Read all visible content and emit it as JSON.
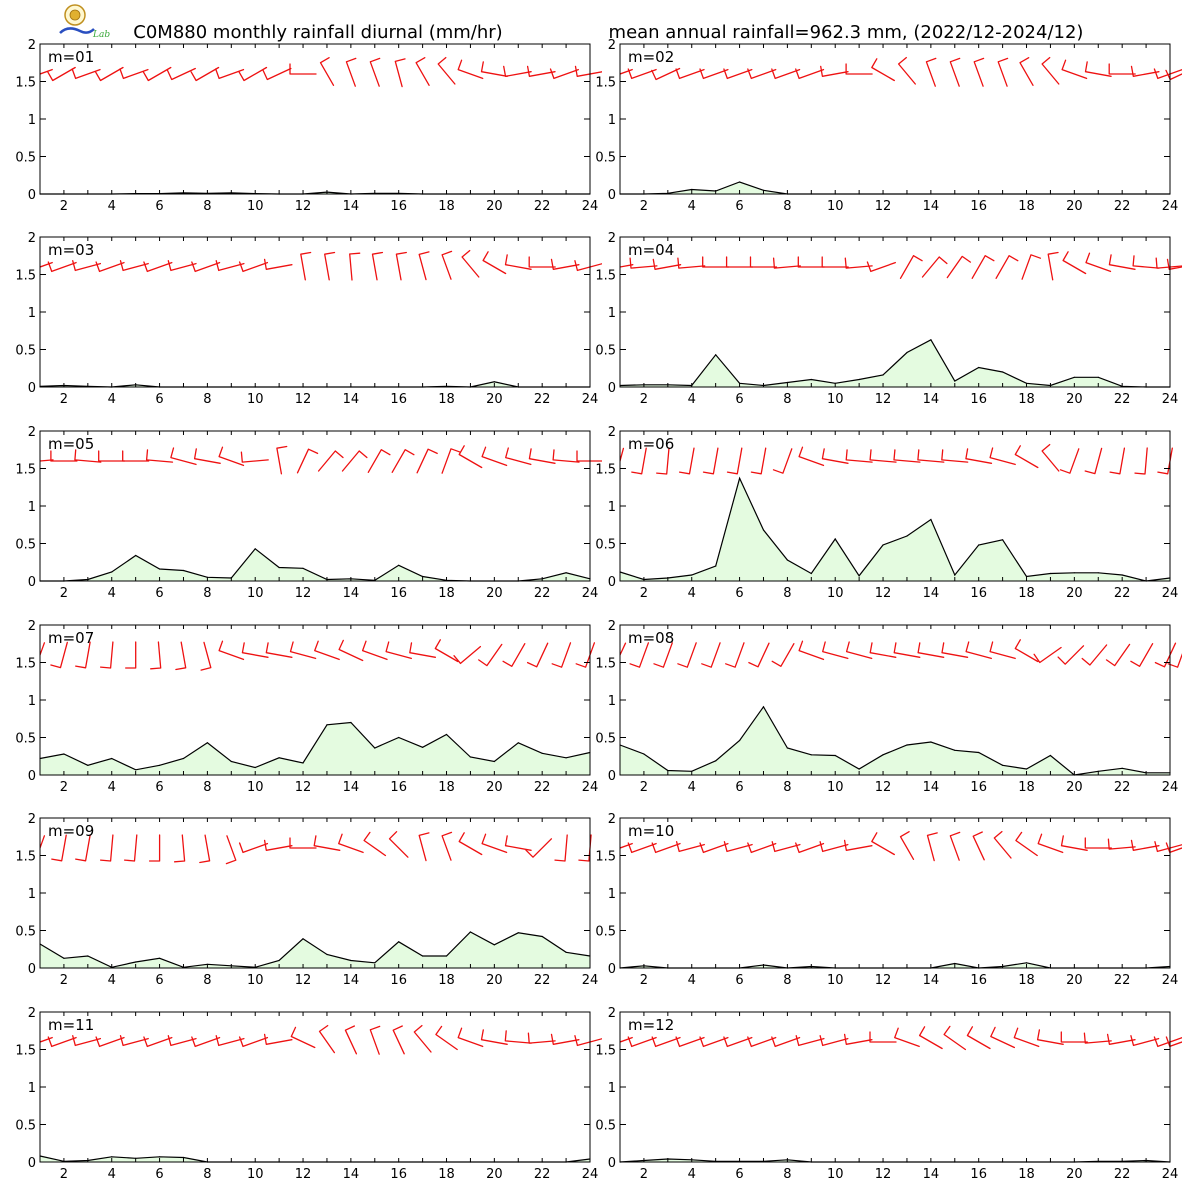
{
  "header": {
    "title_left": "C0M880 monthly rainfall diurnal (mm/hr)",
    "title_right": "mean annual rainfall=962.3 mm, (2022/12-2024/12)",
    "logo_text": "Lab"
  },
  "colors": {
    "rain_fill": "#e4fbe0",
    "rain_line": "#000000",
    "wind_barb": "#ee1111"
  },
  "chart_data": {
    "type": "area",
    "x": [
      1,
      2,
      3,
      4,
      5,
      6,
      7,
      8,
      9,
      10,
      11,
      12,
      13,
      14,
      15,
      16,
      17,
      18,
      19,
      20,
      21,
      22,
      23,
      24
    ],
    "xticks": [
      2,
      4,
      6,
      8,
      10,
      12,
      14,
      16,
      18,
      20,
      22,
      24
    ],
    "yticks": [
      "0",
      "0.5",
      "1",
      "1.5",
      "2"
    ],
    "ytick_values": [
      0,
      0.5,
      1,
      1.5,
      2
    ],
    "xlim": [
      1,
      24
    ],
    "ylim": [
      0,
      2
    ],
    "panels": [
      {
        "label": "m=01",
        "values": [
          0,
          0,
          0,
          0,
          0.005,
          0.005,
          0.015,
          0.01,
          0.015,
          0.005,
          0,
          0,
          0.025,
          0,
          0.01,
          0.01,
          0,
          0,
          0,
          0,
          0,
          0,
          0,
          0
        ],
        "wind_dir": [
          250,
          240,
          250,
          240,
          250,
          240,
          245,
          240,
          250,
          240,
          245,
          270,
          330,
          340,
          340,
          345,
          330,
          320,
          290,
          280,
          260,
          260,
          250,
          260
        ]
      },
      {
        "label": "m=02",
        "values": [
          0,
          0,
          0.01,
          0.06,
          0.04,
          0.16,
          0.05,
          0,
          0,
          0,
          0,
          0,
          0,
          0,
          0,
          0,
          0,
          0,
          0,
          0,
          0,
          0,
          0,
          0
        ],
        "wind_dir": [
          250,
          250,
          245,
          250,
          250,
          250,
          250,
          250,
          250,
          260,
          270,
          300,
          320,
          340,
          340,
          340,
          340,
          330,
          320,
          290,
          280,
          270,
          260,
          250
        ],
        "wind_extra_dir": 245
      },
      {
        "label": "m=03",
        "values": [
          0.01,
          0.02,
          0.01,
          0,
          0.03,
          0,
          0,
          0,
          0,
          0,
          0,
          0,
          0,
          0,
          0,
          0,
          0,
          0.01,
          0,
          0.07,
          0,
          0,
          0,
          0
        ],
        "wind_dir": [
          250,
          250,
          255,
          250,
          255,
          250,
          255,
          250,
          255,
          250,
          260,
          350,
          350,
          355,
          350,
          350,
          345,
          340,
          320,
          300,
          280,
          270,
          260,
          255
        ]
      },
      {
        "label": "m=04",
        "values": [
          0.02,
          0.03,
          0.03,
          0.02,
          0.43,
          0.05,
          0.02,
          0.06,
          0.1,
          0.05,
          0.1,
          0.16,
          0.46,
          0.63,
          0.08,
          0.26,
          0.2,
          0.05,
          0.02,
          0.13,
          0.13,
          0.01,
          0,
          0
        ],
        "wind_dir": [
          260,
          265,
          260,
          265,
          270,
          270,
          270,
          265,
          270,
          270,
          265,
          250,
          30,
          40,
          35,
          30,
          30,
          20,
          350,
          300,
          290,
          280,
          275,
          265
        ],
        "wind_extra_dir": 260
      },
      {
        "label": "m=05",
        "values": [
          0,
          0,
          0.02,
          0.12,
          0.34,
          0.16,
          0.14,
          0.05,
          0.04,
          0.43,
          0.18,
          0.17,
          0.02,
          0.03,
          0.01,
          0.21,
          0.06,
          0.01,
          0,
          0,
          0,
          0.03,
          0.11,
          0.03
        ],
        "wind_dir": [
          265,
          270,
          275,
          270,
          270,
          275,
          285,
          280,
          290,
          265,
          350,
          25,
          40,
          40,
          30,
          30,
          25,
          20,
          300,
          290,
          285,
          280,
          275,
          270
        ]
      },
      {
        "label": "m=06",
        "values": [
          0.12,
          0.02,
          0.04,
          0.08,
          0.2,
          1.37,
          0.68,
          0.28,
          0.1,
          0.56,
          0.07,
          0.48,
          0.6,
          0.82,
          0.08,
          0.48,
          0.55,
          0.06,
          0.1,
          0.11,
          0.11,
          0.08,
          0,
          0.04
        ],
        "wind_dir": [
          195,
          190,
          185,
          190,
          190,
          190,
          190,
          200,
          290,
          280,
          275,
          275,
          275,
          275,
          275,
          280,
          285,
          300,
          320,
          200,
          195,
          190,
          185,
          190
        ]
      },
      {
        "label": "m=07",
        "values": [
          0.22,
          0.28,
          0.13,
          0.22,
          0.07,
          0.13,
          0.22,
          0.43,
          0.18,
          0.1,
          0.23,
          0.16,
          0.67,
          0.7,
          0.36,
          0.5,
          0.37,
          0.54,
          0.24,
          0.18,
          0.43,
          0.29,
          0.23,
          0.3
        ],
        "wind_dir": [
          200,
          195,
          190,
          185,
          180,
          175,
          170,
          165,
          290,
          280,
          280,
          285,
          290,
          295,
          290,
          285,
          280,
          300,
          230,
          215,
          210,
          205,
          200,
          200
        ]
      },
      {
        "label": "m=08",
        "values": [
          0.4,
          0.28,
          0.06,
          0.05,
          0.19,
          0.46,
          0.91,
          0.36,
          0.27,
          0.26,
          0.08,
          0.27,
          0.4,
          0.44,
          0.33,
          0.3,
          0.13,
          0.08,
          0.26,
          0,
          0.05,
          0.09,
          0.03,
          0.03
        ],
        "wind_dir": [
          205,
          200,
          200,
          200,
          200,
          200,
          205,
          210,
          290,
          285,
          285,
          280,
          280,
          280,
          280,
          285,
          285,
          300,
          235,
          225,
          220,
          215,
          210,
          205
        ],
        "wind_extra_dir": 200
      },
      {
        "label": "m=09",
        "values": [
          0.32,
          0.13,
          0.16,
          0.01,
          0.08,
          0.13,
          0.01,
          0.05,
          0.03,
          0.01,
          0.1,
          0.39,
          0.18,
          0.1,
          0.07,
          0.35,
          0.16,
          0.16,
          0.48,
          0.31,
          0.47,
          0.42,
          0.21,
          0.16
        ],
        "wind_dir": [
          200,
          190,
          190,
          185,
          185,
          180,
          175,
          170,
          160,
          250,
          260,
          270,
          280,
          290,
          305,
          315,
          345,
          340,
          300,
          290,
          280,
          225,
          185,
          185
        ]
      },
      {
        "label": "m=10",
        "values": [
          0,
          0.03,
          0,
          0,
          0,
          0,
          0.04,
          0,
          0.02,
          0,
          0,
          0,
          0,
          0,
          0.06,
          0,
          0.02,
          0.07,
          0,
          0,
          0,
          0,
          0,
          0.02
        ],
        "wind_dir": [
          250,
          250,
          250,
          255,
          250,
          255,
          250,
          255,
          250,
          255,
          260,
          300,
          330,
          345,
          340,
          335,
          320,
          305,
          290,
          280,
          270,
          265,
          260,
          255
        ],
        "wind_extra_dir": 250
      },
      {
        "label": "m=11",
        "values": [
          0.08,
          0.01,
          0.02,
          0.07,
          0.05,
          0.07,
          0.06,
          0,
          0,
          0,
          0,
          0,
          0,
          0,
          0,
          0,
          0,
          0,
          0,
          0,
          0,
          0,
          0,
          0.04
        ],
        "wind_dir": [
          250,
          250,
          255,
          250,
          255,
          250,
          255,
          250,
          255,
          250,
          260,
          295,
          325,
          335,
          340,
          335,
          320,
          305,
          290,
          280,
          275,
          265,
          260,
          255
        ]
      },
      {
        "label": "m=12",
        "values": [
          0,
          0.02,
          0.04,
          0.03,
          0.01,
          0.01,
          0.01,
          0.03,
          0,
          0,
          0,
          0,
          0,
          0,
          0,
          0,
          0,
          0,
          0,
          0,
          0.01,
          0.01,
          0.02,
          0
        ],
        "wind_dir": [
          250,
          250,
          250,
          250,
          250,
          250,
          250,
          250,
          255,
          255,
          260,
          270,
          290,
          300,
          305,
          300,
          295,
          290,
          280,
          270,
          265,
          260,
          255,
          250
        ],
        "wind_extra_dir": 250
      }
    ]
  }
}
